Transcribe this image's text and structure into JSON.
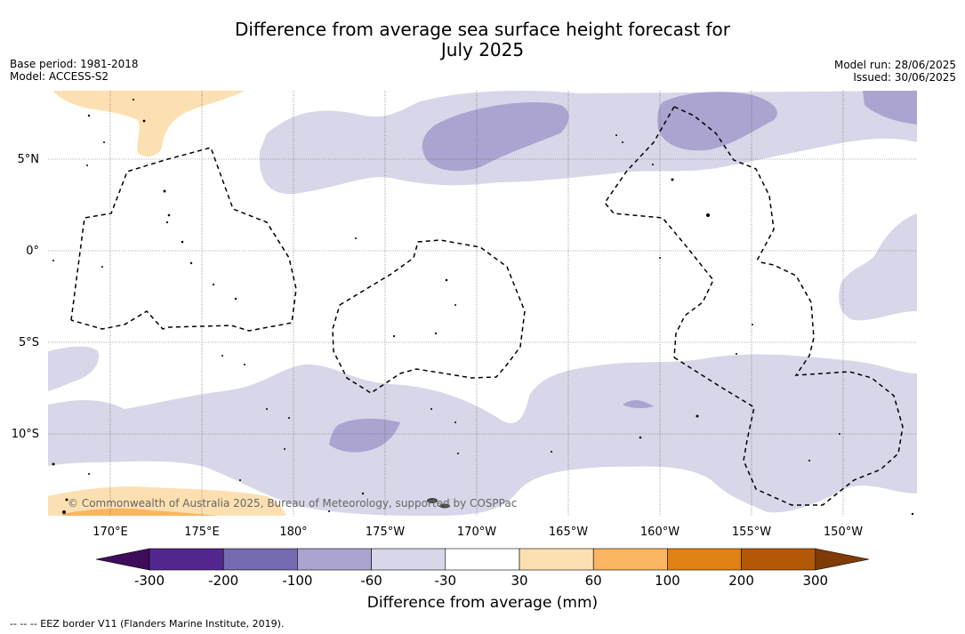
{
  "title_line1": "Difference from average sea surface height forecast for",
  "title_line2": "July 2025",
  "base_period": "Base period: 1981-2018",
  "model": "Model: ACCESS-S2",
  "model_run": "Model run: 28/06/2025",
  "issued": "Issued: 30/06/2025",
  "credit": "© Commonwealth of Australia 2025, Bureau of Meteorology, supported by COSPPac",
  "lat_labels": [
    "5°N",
    "0°",
    "5°S",
    "10°S"
  ],
  "lon_labels": [
    "170°E",
    "175°E",
    "180°",
    "175°W",
    "170°W",
    "165°W",
    "160°W",
    "155°W",
    "150°W"
  ],
  "colorbar": {
    "label": "Difference from average (mm)",
    "ticks": [
      "-300",
      "-200",
      "-100",
      "-60",
      "-30",
      "30",
      "60",
      "100",
      "200",
      "300"
    ],
    "colors": [
      "#3f0d5c",
      "#54278f",
      "#756bb1",
      "#aba4d0",
      "#d7d7e9",
      "#ffffff",
      "#fde0b2",
      "#f9b55f",
      "#e08214",
      "#b35806",
      "#7f3b08"
    ]
  },
  "footnote": "--  --  -- EEZ border V11 (Flanders Marine Institute, 2019).",
  "colors": {
    "neg_light": "#d7d7e9",
    "neg_mid": "#aba4d0",
    "pos_light": "#fde0b2",
    "pos_mid": "#f9b55f"
  }
}
